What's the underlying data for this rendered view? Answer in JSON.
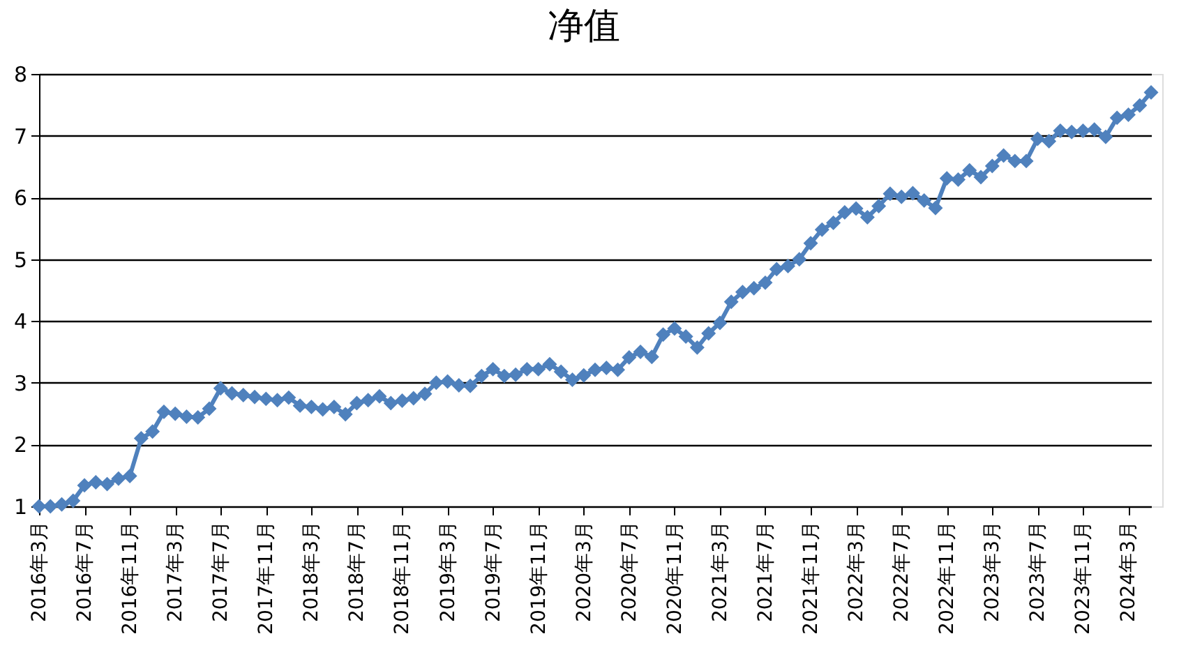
{
  "chart_data": {
    "type": "line",
    "title": "净值",
    "categories": [
      "2016年3月",
      null,
      null,
      null,
      "2016年7月",
      null,
      null,
      null,
      "2016年11月",
      null,
      null,
      null,
      "2017年3月",
      null,
      null,
      null,
      "2017年7月",
      null,
      null,
      null,
      "2017年11月",
      null,
      null,
      null,
      "2018年3月",
      null,
      null,
      null,
      "2018年7月",
      null,
      null,
      null,
      "2018年11月",
      null,
      null,
      null,
      "2019年3月",
      null,
      null,
      null,
      "2019年7月",
      null,
      null,
      null,
      "2019年11月",
      null,
      null,
      null,
      "2020年3月",
      null,
      null,
      null,
      "2020年7月",
      null,
      null,
      null,
      "2020年11月",
      null,
      null,
      null,
      "2021年3月",
      null,
      null,
      null,
      "2021年7月",
      null,
      null,
      null,
      "2021年11月",
      null,
      null,
      null,
      "2022年3月",
      null,
      null,
      null,
      "2022年7月",
      null,
      null,
      null,
      "2022年11月",
      null,
      null,
      null,
      "2023年3月",
      null,
      null,
      null,
      "2023年7月",
      null,
      null,
      null,
      "2023年11月",
      null,
      null,
      null,
      "2024年3月",
      null,
      null
    ],
    "values": [
      1.0,
      1.0,
      1.03,
      1.09,
      1.34,
      1.39,
      1.36,
      1.45,
      1.49,
      2.1,
      2.21,
      2.53,
      2.5,
      2.45,
      2.44,
      2.58,
      2.91,
      2.83,
      2.8,
      2.77,
      2.74,
      2.72,
      2.76,
      2.63,
      2.61,
      2.57,
      2.61,
      2.49,
      2.67,
      2.72,
      2.78,
      2.67,
      2.71,
      2.75,
      2.82,
      3.0,
      3.02,
      2.96,
      2.95,
      3.11,
      3.22,
      3.11,
      3.13,
      3.22,
      3.22,
      3.3,
      3.18,
      3.05,
      3.12,
      3.21,
      3.24,
      3.21,
      3.41,
      3.5,
      3.42,
      3.78,
      3.88,
      3.75,
      3.57,
      3.8,
      3.97,
      4.31,
      4.47,
      4.53,
      4.62,
      4.84,
      4.89,
      5.0,
      5.26,
      5.48,
      5.59,
      5.76,
      5.82,
      5.68,
      5.86,
      6.06,
      6.01,
      6.07,
      5.95,
      5.83,
      6.31,
      6.29,
      6.44,
      6.33,
      6.51,
      6.68,
      6.59,
      6.59,
      6.95,
      6.91,
      7.08,
      7.06,
      7.08,
      7.1,
      6.98,
      7.29,
      7.34,
      7.49,
      7.7
    ],
    "color": "#4f81bd",
    "marker": "diamond",
    "line_style": "solid",
    "ylim": [
      1,
      8
    ],
    "yticks": [
      1,
      2,
      3,
      4,
      5,
      6,
      7,
      8
    ],
    "grid": "y"
  }
}
